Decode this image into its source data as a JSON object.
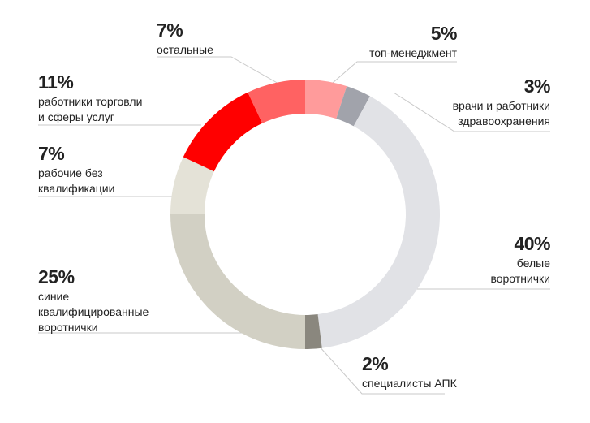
{
  "chart_data": {
    "type": "donut",
    "categories": [
      "топ-менеджмент",
      "врачи и работники\nздравоохранения",
      "белые\nворотнички",
      "специалисты АПК",
      "синие\nквалифицированные\nворотнички",
      "рабочие без\nквалификации",
      "работники торговли\nи сферы услуг",
      "остальные"
    ],
    "values": [
      5,
      3,
      40,
      2,
      25,
      7,
      11,
      7
    ],
    "value_labels": [
      "5%",
      "3%",
      "40%",
      "2%",
      "25%",
      "7%",
      "11%",
      "7%"
    ],
    "colors": [
      "#ff9b9b",
      "#a1a3ab",
      "#e1e2e6",
      "#8a877e",
      "#d2d0c4",
      "#e4e2d7",
      "#ff0000",
      "#ff6262"
    ]
  }
}
